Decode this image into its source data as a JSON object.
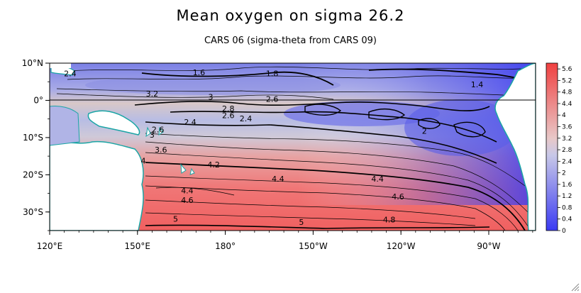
{
  "title": "Mean oxygen on sigma 26.2",
  "subtitle": "CARS 06 (sigma-theta from CARS 09)",
  "axes": {
    "x_ticks": [
      {
        "lon": 120,
        "label": "120°E"
      },
      {
        "lon": 150,
        "label": "150°E"
      },
      {
        "lon": 180,
        "label": "180°"
      },
      {
        "lon": 210,
        "label": "150°W"
      },
      {
        "lon": 240,
        "label": "120°W"
      },
      {
        "lon": 270,
        "label": "90°W"
      }
    ],
    "y_ticks": [
      {
        "lat": 10,
        "label": "10°N"
      },
      {
        "lat": 0,
        "label": "0°"
      },
      {
        "lat": -10,
        "label": "10°S"
      },
      {
        "lat": -20,
        "label": "20°S"
      },
      {
        "lat": -30,
        "label": "30°S"
      }
    ],
    "lon_range": [
      120,
      286
    ],
    "lat_range": [
      -35,
      10
    ]
  },
  "colorbar": {
    "labels": [
      "5.6",
      "5.2",
      "4.8",
      "4.4",
      "4",
      "3.6",
      "3.2",
      "2.8",
      "2.4",
      "2",
      "1.6",
      "1.2",
      "0.8",
      "0.4",
      "0"
    ],
    "range": [
      0,
      5.8
    ],
    "low_color": "#3a3af2",
    "mid_color": "#dcdcdc",
    "high_color": "#f04040"
  },
  "contour_labels": [
    {
      "lon": 127,
      "lat": 6.5,
      "text": "2.4"
    },
    {
      "lon": 171,
      "lat": 6.8,
      "text": "1.6"
    },
    {
      "lon": 196,
      "lat": 6.5,
      "text": "1.8"
    },
    {
      "lon": 266,
      "lat": 3.5,
      "text": "1.4"
    },
    {
      "lon": 155,
      "lat": 1.0,
      "text": "3.2"
    },
    {
      "lon": 175,
      "lat": 0.2,
      "text": "3"
    },
    {
      "lon": 196,
      "lat": -0.4,
      "text": "2.6"
    },
    {
      "lon": 181,
      "lat": -3.0,
      "text": "2.8"
    },
    {
      "lon": 181,
      "lat": -4.8,
      "text": "2.6"
    },
    {
      "lon": 187,
      "lat": -5.6,
      "text": "2.4"
    },
    {
      "lon": 168,
      "lat": -6.6,
      "text": "2.4"
    },
    {
      "lon": 157,
      "lat": -8.6,
      "text": "2.6"
    },
    {
      "lon": 155,
      "lat": -10.0,
      "text": "3"
    },
    {
      "lon": 248,
      "lat": -9.0,
      "text": "2"
    },
    {
      "lon": 158,
      "lat": -14.0,
      "text": "3.6"
    },
    {
      "lon": 176,
      "lat": -18.0,
      "text": "4.2"
    },
    {
      "lon": 152,
      "lat": -17.0,
      "text": "4"
    },
    {
      "lon": 198,
      "lat": -21.8,
      "text": "4.4"
    },
    {
      "lon": 232,
      "lat": -21.8,
      "text": "4.4"
    },
    {
      "lon": 167,
      "lat": -25.0,
      "text": "4.4"
    },
    {
      "lon": 167,
      "lat": -27.6,
      "text": "4.6"
    },
    {
      "lon": 239,
      "lat": -26.6,
      "text": "4.6"
    },
    {
      "lon": 206,
      "lat": -33.5,
      "text": "5"
    },
    {
      "lon": 236,
      "lat": -32.8,
      "text": "4.8"
    },
    {
      "lon": 163,
      "lat": -32.6,
      "text": "5"
    }
  ]
}
